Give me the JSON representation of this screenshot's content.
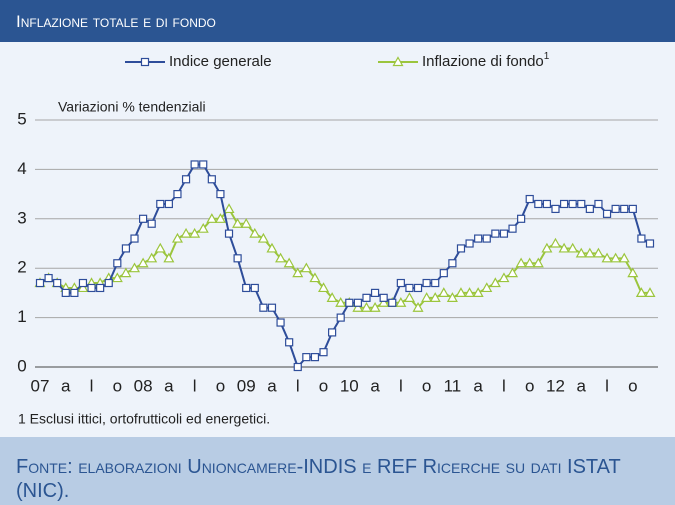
{
  "chart_data": {
    "type": "line",
    "title": "Inflazione totale e di fondo",
    "y_axis_label": "Variazioni % tendenziali",
    "footnote": "1 Esclusi ittici, ortofrutticoli ed energetici.",
    "footnote_marker": "1",
    "source": "Fonte: elaborazioni Unioncamere-INDIS e REF Ricerche su dati ISTAT (NIC).",
    "categories": [
      "07",
      null,
      null,
      "a",
      null,
      null,
      "l",
      null,
      null,
      "o",
      null,
      null,
      "08",
      null,
      null,
      "a",
      null,
      null,
      "l",
      null,
      null,
      "o",
      null,
      null,
      "09",
      null,
      null,
      "a",
      null,
      null,
      "l",
      null,
      null,
      "o",
      null,
      null,
      "10",
      null,
      null,
      "a",
      null,
      null,
      "l",
      null,
      null,
      "o",
      null,
      null,
      "11",
      null,
      null,
      "a",
      null,
      null,
      "l",
      null,
      null,
      "o",
      null,
      null,
      "12",
      null,
      null,
      "a",
      null,
      null,
      "l",
      null,
      null,
      "o",
      null,
      null
    ],
    "series": [
      {
        "name": "Indice generale",
        "color": "#2e4d9a",
        "marker": "square",
        "values": [
          1.7,
          1.8,
          1.7,
          1.5,
          1.5,
          1.7,
          1.6,
          1.6,
          1.7,
          2.1,
          2.4,
          2.6,
          3.0,
          2.9,
          3.3,
          3.3,
          3.5,
          3.8,
          4.1,
          4.1,
          3.8,
          3.5,
          2.7,
          2.2,
          1.6,
          1.6,
          1.2,
          1.2,
          0.9,
          0.5,
          0.0,
          0.2,
          0.2,
          0.3,
          0.7,
          1.0,
          1.3,
          1.3,
          1.4,
          1.5,
          1.4,
          1.3,
          1.7,
          1.6,
          1.6,
          1.7,
          1.7,
          1.9,
          2.1,
          2.4,
          2.5,
          2.6,
          2.6,
          2.7,
          2.7,
          2.8,
          3.0,
          3.4,
          3.3,
          3.3,
          3.2,
          3.3,
          3.3,
          3.3,
          3.2,
          3.3,
          3.1,
          3.2,
          3.2,
          3.2,
          2.6,
          2.5
        ]
      },
      {
        "name": "Inflazione di fondo",
        "color": "#9bc53d",
        "marker": "triangle",
        "values": [
          1.7,
          1.8,
          1.7,
          1.6,
          1.6,
          1.6,
          1.7,
          1.7,
          1.8,
          1.8,
          1.9,
          2.0,
          2.1,
          2.2,
          2.4,
          2.2,
          2.6,
          2.7,
          2.7,
          2.8,
          3.0,
          3.0,
          3.2,
          2.9,
          2.9,
          2.7,
          2.6,
          2.4,
          2.2,
          2.1,
          1.9,
          2.0,
          1.8,
          1.6,
          1.4,
          1.3,
          1.3,
          1.2,
          1.2,
          1.2,
          1.3,
          1.3,
          1.3,
          1.4,
          1.2,
          1.4,
          1.4,
          1.5,
          1.4,
          1.5,
          1.5,
          1.5,
          1.6,
          1.7,
          1.8,
          1.9,
          2.1,
          2.1,
          2.1,
          2.4,
          2.5,
          2.4,
          2.4,
          2.3,
          2.3,
          2.3,
          2.2,
          2.2,
          2.2,
          1.9,
          1.5,
          1.5
        ]
      }
    ],
    "ylim": [
      0,
      5
    ],
    "yticks": [
      0,
      1,
      2,
      3,
      4,
      5
    ],
    "grid": true
  }
}
